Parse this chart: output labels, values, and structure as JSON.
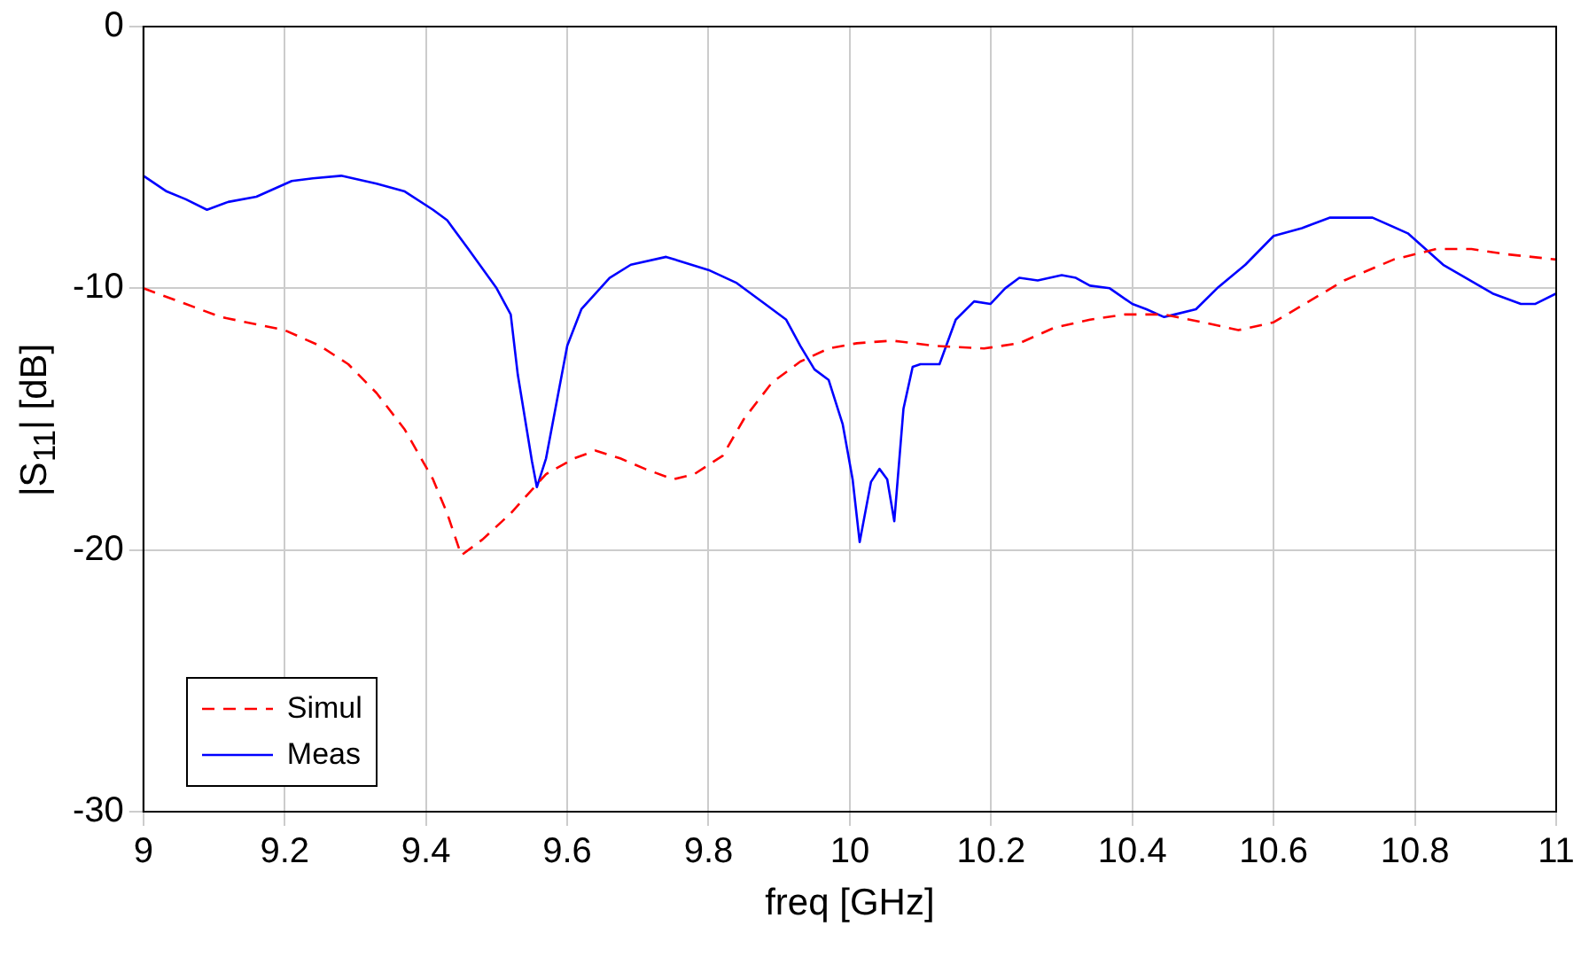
{
  "chart_data": {
    "type": "line",
    "xlabel": "freq [GHz]",
    "ylabel": "|S$_{11}$| [dB]",
    "xlim": [
      9,
      11
    ],
    "xticks": [
      9,
      9.2,
      9.4,
      9.6,
      9.8,
      10,
      10.2,
      10.4,
      10.6,
      10.8,
      11
    ],
    "ylim": [
      -30,
      0
    ],
    "yticks": [
      -30,
      -20,
      -10,
      0
    ],
    "grid": true,
    "legend": "bottom left",
    "marker": "none",
    "series": [
      {
        "name": "Simul",
        "color": "#ff0000",
        "line_style": "dashed",
        "x": [
          9,
          9.06,
          9.11,
          9.2,
          9.25,
          9.29,
          9.33,
          9.37,
          9.41,
          9.43,
          9.45,
          9.48,
          9.52,
          9.57,
          9.61,
          9.64,
          9.675,
          9.71,
          9.75,
          9.78,
          9.82,
          9.85,
          9.89,
          9.93,
          9.97,
          10.01,
          10.06,
          10.12,
          10.19,
          10.24,
          10.29,
          10.34,
          10.39,
          10.445,
          10.5,
          10.55,
          10.6,
          10.65,
          10.7,
          10.77,
          10.83,
          10.88,
          10.93,
          11
        ],
        "values": [
          -10.0,
          -10.6,
          -11.1,
          -11.6,
          -12.2,
          -12.9,
          -14.0,
          -15.4,
          -17.3,
          -18.6,
          -20.2,
          -19.6,
          -18.6,
          -17.1,
          -16.5,
          -16.2,
          -16.5,
          -16.9,
          -17.3,
          -17.1,
          -16.4,
          -15.0,
          -13.6,
          -12.8,
          -12.3,
          -12.1,
          -12.0,
          -12.2,
          -12.3,
          -12.1,
          -11.5,
          -11.2,
          -11.0,
          -11.0,
          -11.3,
          -11.6,
          -11.3,
          -10.5,
          -9.7,
          -8.9,
          -8.5,
          -8.5,
          -8.7,
          -8.9
        ]
      },
      {
        "name": "Meas",
        "color": "#0000ff",
        "line_style": "solid",
        "x": [
          9,
          9.033,
          9.06,
          9.09,
          9.12,
          9.16,
          9.21,
          9.24,
          9.28,
          9.33,
          9.37,
          9.41,
          9.43,
          9.46,
          9.5,
          9.52,
          9.53,
          9.55,
          9.557,
          9.57,
          9.6,
          9.62,
          9.66,
          9.69,
          9.74,
          9.8,
          9.84,
          9.88,
          9.91,
          9.93,
          9.95,
          9.97,
          9.99,
          10.004,
          10.014,
          10.03,
          10.042,
          10.053,
          10.063,
          10.076,
          10.089,
          10.1,
          10.127,
          10.15,
          10.176,
          10.199,
          10.22,
          10.24,
          10.266,
          10.3,
          10.32,
          10.34,
          10.368,
          10.4,
          10.42,
          10.445,
          10.46,
          10.49,
          10.52,
          10.56,
          10.6,
          10.64,
          10.68,
          10.74,
          10.79,
          10.84,
          10.91,
          10.95,
          10.97,
          11
        ],
        "values": [
          -5.7,
          -6.3,
          -6.6,
          -7.0,
          -6.7,
          -6.5,
          -5.9,
          -5.8,
          -5.7,
          -6.0,
          -6.3,
          -7.0,
          -7.4,
          -8.5,
          -10.0,
          -11.0,
          -13.3,
          -16.6,
          -17.6,
          -16.5,
          -12.2,
          -10.8,
          -9.6,
          -9.1,
          -8.8,
          -9.3,
          -9.8,
          -10.6,
          -11.2,
          -12.2,
          -13.1,
          -13.5,
          -15.2,
          -17.3,
          -19.7,
          -17.4,
          -16.9,
          -17.3,
          -18.9,
          -14.6,
          -13.0,
          -12.9,
          -12.9,
          -11.2,
          -10.5,
          -10.6,
          -10.0,
          -9.6,
          -9.7,
          -9.5,
          -9.6,
          -9.9,
          -10.0,
          -10.6,
          -10.8,
          -11.1,
          -11.0,
          -10.8,
          -10.0,
          -9.1,
          -8.0,
          -7.7,
          -7.3,
          -7.3,
          -7.9,
          -9.1,
          -10.2,
          -10.6,
          -10.6,
          -10.2
        ]
      }
    ]
  }
}
